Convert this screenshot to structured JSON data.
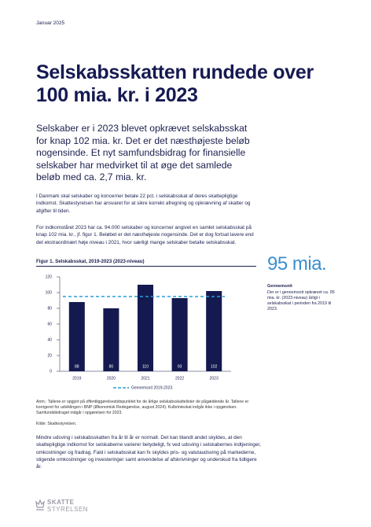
{
  "header": {
    "date": "Januar 2025",
    "title": "Selskabsskatten rundede over 100 mia. kr. i 2023"
  },
  "lead": "Selskaber er i 2023 blevet opkrævet selskabsskat for knap 102 mia. kr. Det er det næsthøjeste beløb nogensinde. Et nyt samfundsbidrag for finansielle selskaber har medvirket til at øge det samlede beløb med ca. 2,7 mia. kr.",
  "paragraphs": [
    "I Danmark skal selskaber og koncerner betale 22 pct. i selskabsskat af deres skattepligtige indkomst. Skattestyrelsen har ansvaret for at sikre korrekt afregning og opkrævning af skatter og afgifter til tiden.",
    "For indkomståret 2023 har ca. 94.000 selskaber og koncerner angivet en samlet selskabsskat på knap 102 mia. kr., jf. figur 1. Beløbet er det næsthøjeste nogensinde. Det er dog fortsat lavere end det ekstraordinært høje niveau i 2021, hvor særligt mange selskaber betalte selskabsskat.",
    "Mindre udsving i selskabsskatten fra år til år er normalt. Det kan blandt andet skyldes, at den skattepligtige indkomst for selskaberne varierer betydeligt, fx ved udsving i selskabernes indtjeninger, omkostninger og fradrag. Fald i selskabsskat kan fx skyldes pris- og valutaudsving på markederne, stigende omkostninger og investeringer samt anvendelse af afskrivninger og underskud fra tidligere år."
  ],
  "figure": {
    "type": "bar",
    "title": "Figur 1. Selskabsskat, 2019-2023 (2023-niveau)",
    "categories": [
      "2019",
      "2020",
      "2021",
      "2022",
      "2023"
    ],
    "values": [
      88,
      80,
      110,
      93,
      102
    ],
    "color": "#141a4f",
    "ylim": [
      0,
      120
    ],
    "yticks": [
      0,
      20,
      40,
      60,
      80,
      100,
      120
    ],
    "average": {
      "name": "Gennemsnit 2019-2023",
      "value": 95,
      "color": "#2a9fd6"
    },
    "note": "Anm.: Tallene er opgjort på offentliggørelsestidspunktet for de årlige selskabsskattelister de pågældende år. Tallene er korrigeret for udviklingen i BNP (Økonomisk Redegørelse, august 2024). Kulbrinteskat indgår ikke i opgørelsen. Samfundsbidraget indgår i opgørelsen for 2023.",
    "source": "Kilde: Skattestyrelsen."
  },
  "sidebar": {
    "highlight": "95 mia.",
    "heading": "Gennemsnit",
    "text": "Der er i gennemsnit opkrævet ca. 95 mia. kr. (2023-niveau) årligt i selskabsskat i perioden fra 2019 til 2023."
  },
  "logo": {
    "line1": "SKATTE",
    "line2": "STYRELSEN"
  }
}
